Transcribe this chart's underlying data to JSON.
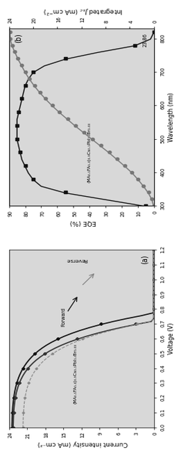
{
  "panel_a": {
    "title": "Current intensity (mA cm⁻²)",
    "voltage_label": "Voltage (V)",
    "xlim": [
      0.0,
      24.0
    ],
    "ylim": [
      0.0,
      1.2
    ],
    "xticks": [
      0,
      3,
      6,
      9,
      12,
      15,
      18,
      21,
      24
    ],
    "yticks": [
      0.0,
      0.1,
      0.2,
      0.3,
      0.4,
      0.5,
      0.6,
      0.7,
      0.8,
      0.9,
      1.0,
      1.1,
      1.2
    ],
    "label_text": "(MA₀.₁FA₀.₃)₀.₉Cs₀.₁PbI₁.ₗBr₀.₀₃",
    "forward_label": "Forward",
    "reverse_label": "Reverse",
    "panel_label": "(a)"
  },
  "panel_b": {
    "eqe_label": "EQE (%)",
    "jsc_label": "Integrated J_sc (mA cm⁻²)",
    "wavelength_label": "Wavelength (nm)",
    "xlim_eqe": [
      0,
      90
    ],
    "xlim_jsc": [
      0,
      24
    ],
    "ylim": [
      300,
      830
    ],
    "eqe_xticks": [
      0,
      10,
      20,
      30,
      40,
      50,
      60,
      70,
      80,
      90
    ],
    "jsc_xticks": [
      0,
      4,
      8,
      12,
      16,
      20,
      24
    ],
    "wavelength_yticks": [
      300,
      400,
      500,
      600,
      700,
      800
    ],
    "label_text": "(MA₀.₁FA₀.₃)₀.₉Cs₀.₁PbI₁.ₗBr₀.₀₃",
    "annotation": "23.86",
    "panel_label": "(b)"
  },
  "colors": {
    "reverse_black": "#111111",
    "forward_dark": "#333333",
    "dashed_gray": "#888888",
    "eqe_black": "#111111",
    "jsc_gray": "#777777",
    "background": "#d8d8d8"
  },
  "jv_reverse": [
    23.5,
    23.5,
    23.48,
    23.47,
    23.45,
    23.43,
    23.4,
    23.37,
    23.33,
    23.28,
    23.22,
    23.15,
    23.07,
    22.97,
    22.86,
    22.73,
    22.58,
    22.41,
    22.21,
    21.98,
    21.72,
    21.42,
    21.08,
    20.69,
    20.25,
    19.75,
    19.18,
    18.53,
    17.79,
    16.94,
    15.97,
    14.87,
    13.62,
    12.2,
    10.6,
    8.8,
    6.78,
    4.53,
    2.04,
    0.0,
    0.0,
    0.0,
    0.0,
    0.0,
    0.0,
    0.0,
    0.0,
    0.0,
    0.0,
    0.0,
    0.0,
    0.0,
    0.0,
    0.0,
    0.0,
    0.0,
    0.0,
    0.0,
    0.0,
    0.0,
    0.0
  ],
  "jv_forward": [
    23.3,
    23.3,
    23.28,
    23.27,
    23.25,
    23.22,
    23.19,
    23.15,
    23.1,
    23.04,
    22.96,
    22.87,
    22.77,
    22.64,
    22.49,
    22.31,
    22.11,
    21.87,
    21.6,
    21.28,
    20.91,
    20.49,
    20.01,
    19.46,
    18.83,
    18.11,
    17.29,
    16.36,
    15.3,
    14.1,
    12.74,
    11.2,
    9.48,
    7.55,
    5.4,
    3.03,
    0.44,
    0.0,
    0.0,
    0.0,
    0.0,
    0.0,
    0.0,
    0.0,
    0.0,
    0.0,
    0.0,
    0.0,
    0.0,
    0.0,
    0.0,
    0.0,
    0.0,
    0.0,
    0.0,
    0.0,
    0.0,
    0.0,
    0.0,
    0.0,
    0.0
  ],
  "voltage": [
    0.0,
    0.02,
    0.04,
    0.06,
    0.08,
    0.1,
    0.12,
    0.14,
    0.16,
    0.18,
    0.2,
    0.22,
    0.24,
    0.26,
    0.28,
    0.3,
    0.32,
    0.34,
    0.36,
    0.38,
    0.4,
    0.42,
    0.44,
    0.46,
    0.48,
    0.5,
    0.52,
    0.54,
    0.56,
    0.58,
    0.6,
    0.62,
    0.64,
    0.66,
    0.68,
    0.7,
    0.72,
    0.74,
    0.76,
    0.78,
    0.8,
    0.82,
    0.84,
    0.86,
    0.88,
    0.9,
    0.92,
    0.94,
    0.96,
    0.98,
    1.0,
    1.02,
    1.04,
    1.06,
    1.08,
    1.1,
    1.12,
    1.14,
    1.16,
    1.18,
    1.2
  ],
  "wl": [
    300,
    320,
    340,
    360,
    380,
    400,
    420,
    440,
    460,
    480,
    500,
    520,
    540,
    560,
    580,
    600,
    620,
    640,
    660,
    680,
    700,
    720,
    740,
    760,
    780,
    800,
    820
  ],
  "eqe": [
    5,
    30,
    55,
    70,
    75,
    78,
    80,
    82,
    83,
    84,
    85,
    85,
    85,
    85,
    84,
    83,
    82,
    81,
    80,
    78,
    75,
    68,
    55,
    35,
    12,
    2,
    0
  ],
  "jsc_int": [
    0,
    0.3,
    0.9,
    1.7,
    2.6,
    3.6,
    4.8,
    6.1,
    7.4,
    8.8,
    10.2,
    11.6,
    13.0,
    14.3,
    15.6,
    16.8,
    17.9,
    18.9,
    19.8,
    20.6,
    21.3,
    21.9,
    22.5,
    23.0,
    23.5,
    23.8,
    23.86
  ]
}
